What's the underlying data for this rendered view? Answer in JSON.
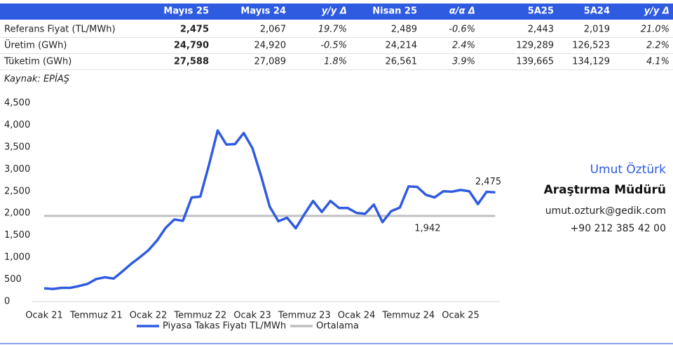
{
  "table": {
    "header": [
      "Mayıs 25",
      "Mayıs 24",
      "y/y Δ",
      "Nisan 25",
      "α/α Δ",
      "5A25",
      "5A24",
      "y/y Δ"
    ],
    "rows": [
      [
        "Referans Fiyat (TL/MWh)",
        "2,475",
        "2,067",
        "19.7%",
        "2,489",
        "-0.6%",
        "2,443",
        "2,019",
        "21.0%"
      ],
      [
        "Üretim (GWh)",
        "24,790",
        "24,920",
        "-0.5%",
        "24,214",
        "2.4%",
        "129,289",
        "126,523",
        "2.2%"
      ],
      [
        "Tüketim (GWh)",
        "27,588",
        "27,089",
        "1.8%",
        "26,561",
        "3.9%",
        "139,665",
        "134,129",
        "4.1%"
      ]
    ]
  },
  "source": "Kaynak: EPİAŞ",
  "chart_data": {
    "type": "line",
    "categories": [
      "Ocak 21",
      null,
      null,
      null,
      null,
      null,
      "Temmuz 21",
      null,
      null,
      null,
      null,
      null,
      "Ocak 22",
      null,
      null,
      null,
      null,
      null,
      "Temmuz 22",
      null,
      null,
      null,
      null,
      null,
      "Ocak 23",
      null,
      null,
      null,
      null,
      null,
      "Temmuz 23",
      null,
      null,
      null,
      null,
      null,
      "Ocak 24",
      null,
      null,
      null,
      null,
      null,
      "Temmuz 24",
      null,
      null,
      null,
      null,
      null,
      "Ocak 25",
      null,
      null,
      null,
      null
    ],
    "series": [
      {
        "name": "Piyasa Takas Fiyatı TL/MWh",
        "color": "#2f5be0",
        "values": [
          300,
          285,
          310,
          310,
          350,
          400,
          510,
          550,
          520,
          680,
          850,
          1000,
          1160,
          1380,
          1670,
          1860,
          1830,
          2360,
          2380,
          3100,
          3880,
          3560,
          3570,
          3820,
          3480,
          2850,
          2150,
          1820,
          1900,
          1660,
          1980,
          2280,
          2030,
          2280,
          2120,
          2120,
          2010,
          1990,
          2200,
          1800,
          2050,
          2130,
          2610,
          2600,
          2420,
          2360,
          2500,
          2490,
          2530,
          2500,
          2210,
          2489,
          2475
        ],
        "value_labels": [
          null,
          null,
          null,
          null,
          null,
          null,
          null,
          null,
          null,
          null,
          null,
          null,
          null,
          null,
          null,
          null,
          null,
          null,
          null,
          null,
          null,
          null,
          null,
          null,
          null,
          null,
          null,
          null,
          null,
          null,
          null,
          null,
          null,
          null,
          null,
          null,
          null,
          null,
          null,
          null,
          null,
          null,
          null,
          null,
          null,
          null,
          null,
          null,
          null,
          null,
          null,
          null,
          "2,475"
        ]
      },
      {
        "name": "Ortalama",
        "color": "#c0c0c0",
        "values": [
          1942,
          1942,
          1942,
          1942,
          1942,
          1942,
          1942,
          1942,
          1942,
          1942,
          1942,
          1942,
          1942,
          1942,
          1942,
          1942,
          1942,
          1942,
          1942,
          1942,
          1942,
          1942,
          1942,
          1942,
          1942,
          1942,
          1942,
          1942,
          1942,
          1942,
          1942,
          1942,
          1942,
          1942,
          1942,
          1942,
          1942,
          1942,
          1942,
          1942,
          1942,
          1942,
          1942,
          1942,
          1942,
          1942,
          1942,
          1942,
          1942,
          1942,
          1942,
          1942,
          1942
        ],
        "value_labels": [
          null,
          null,
          null,
          null,
          null,
          null,
          null,
          null,
          null,
          null,
          null,
          null,
          null,
          null,
          null,
          null,
          null,
          null,
          null,
          null,
          null,
          null,
          null,
          null,
          null,
          null,
          null,
          null,
          null,
          null,
          null,
          null,
          null,
          null,
          null,
          null,
          null,
          null,
          null,
          null,
          null,
          null,
          null,
          null,
          null,
          "1,942",
          null,
          null,
          null,
          null,
          null,
          null,
          null
        ]
      }
    ],
    "ylim": [
      0,
      4500
    ],
    "yticks": [
      0,
      500,
      {
        "value": 1000,
        "label": "1,000"
      },
      {
        "value": 1500,
        "label": "1,500"
      },
      {
        "value": 2000,
        "label": "2,000"
      },
      {
        "value": 2500,
        "label": "2,500"
      },
      {
        "value": 3000,
        "label": "3,000"
      },
      {
        "value": 3500,
        "label": "3,500"
      },
      {
        "value": 4000,
        "label": "4,000"
      },
      {
        "value": 4500,
        "label": "4,500"
      }
    ],
    "legend": "bottom"
  },
  "contact": {
    "name": "Umut Öztürk",
    "role": "Araştırma Müdürü",
    "email": "umut.ozturk@gedik.com",
    "phone": "+90 212 385 42 00"
  }
}
